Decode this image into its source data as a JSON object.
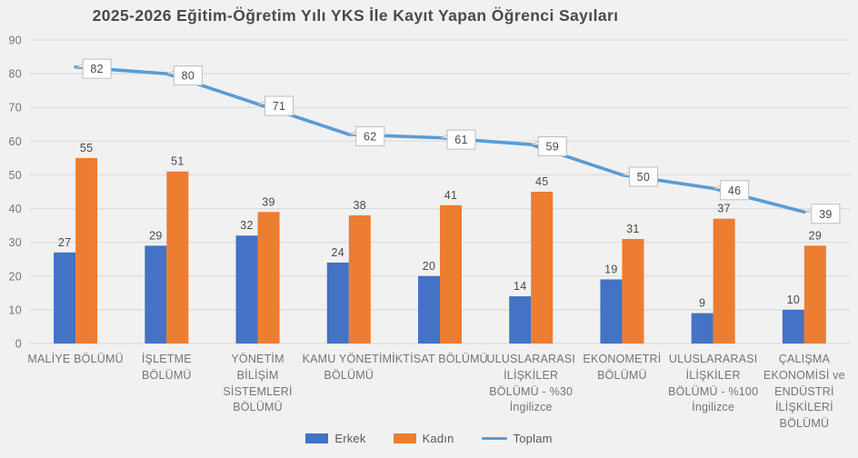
{
  "title": "2025-2026 Eğitim-Öğretim Yılı YKS İle Kayıt Yapan Öğrenci Sayıları",
  "colors": {
    "background": "#F1F1F1",
    "gridline": "#DCDCDC",
    "erkek_bar": "#4472C4",
    "kadin_bar": "#ED7D31",
    "toplam_line": "#5B9BD5",
    "title_text": "#4A4A4A",
    "axis_text": "#757575",
    "value_label_text": "#4A4A4A",
    "callout_fill": "#FFFFFF",
    "callout_border": "#BDBDBD",
    "legend_text": "#595959"
  },
  "chart_data": {
    "type": "bar",
    "subtype": "grouped bars with overlaid line (combo chart)",
    "title": "2025-2026 Eğitim-Öğretim Yılı YKS İle Kayıt Yapan Öğrenci Sayıları",
    "categories": [
      "MALİYE BÖLÜMÜ",
      "İŞLETME BÖLÜMÜ",
      "YÖNETİM BİLİŞİM SİSTEMLERİ BÖLÜMÜ",
      "KAMU YÖNETİMİ BÖLÜMÜ",
      "İKTİSAT BÖLÜMÜ",
      "ULUSLARARASI İLİŞKİLER BÖLÜMÜ - %30 İngilizce",
      "EKONOMETRİ BÖLÜMÜ",
      "ULUSLARARASI İLİŞKİLER BÖLÜMÜ - %100 İngilizce",
      "ÇALIŞMA EKONOMİSİ ve ENDÜSTRİ İLİŞKİLERİ BÖLÜMÜ"
    ],
    "series": [
      {
        "name": "Erkek",
        "render": "bar",
        "color": "#4472C4",
        "values": [
          27,
          29,
          32,
          24,
          20,
          14,
          19,
          9,
          10
        ]
      },
      {
        "name": "Kadın",
        "render": "bar",
        "color": "#ED7D31",
        "values": [
          55,
          51,
          39,
          38,
          41,
          45,
          31,
          37,
          29
        ]
      },
      {
        "name": "Toplam",
        "render": "line",
        "color": "#5B9BD5",
        "values": [
          82,
          80,
          71,
          62,
          61,
          59,
          50,
          46,
          39
        ]
      }
    ],
    "xlabel": "",
    "ylabel": "",
    "ylim": [
      0,
      90
    ],
    "ytick_interval": 10,
    "yticks": [
      0,
      10,
      20,
      30,
      40,
      50,
      60,
      70,
      80,
      90
    ],
    "grid": true,
    "data_labels": true,
    "line_data_label_style": "white callout boxes",
    "legend_position": "bottom-center"
  }
}
